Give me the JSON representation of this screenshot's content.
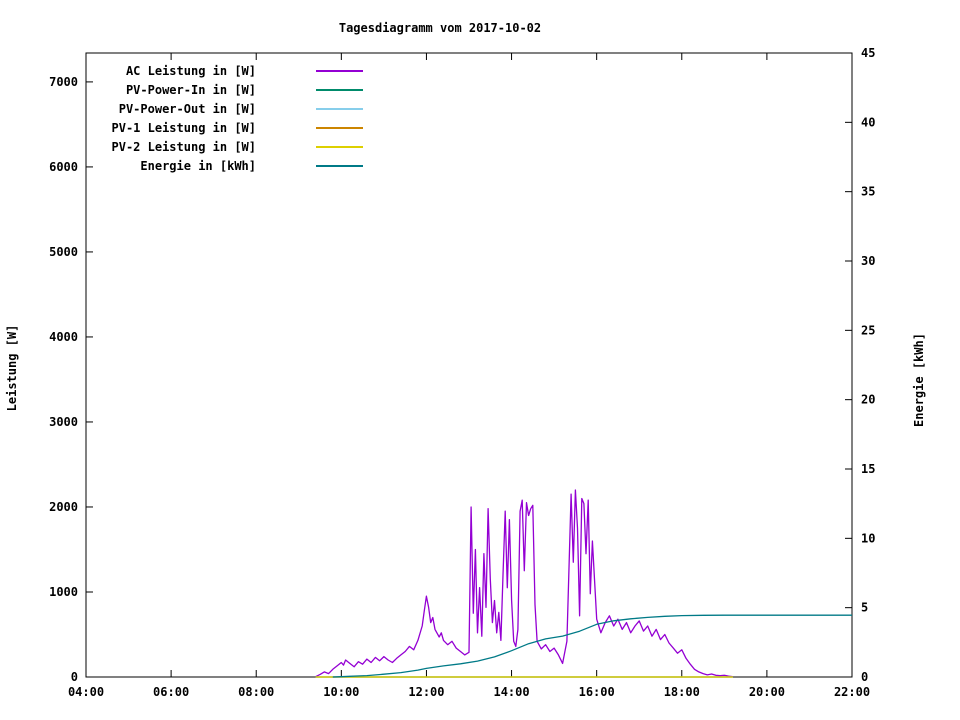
{
  "chart_data": {
    "type": "line",
    "title": "Tagesdiagramm vom 2017-10-02",
    "ylabel_left": "Leistung [W]",
    "ylabel_right": "Energie [kWh]",
    "grid": false,
    "legend_position": "top-left",
    "x_axis": {
      "start_hour": 4,
      "end_hour": 22,
      "tick_step": 2,
      "tick_labels": [
        "04:00",
        "06:00",
        "08:00",
        "10:00",
        "12:00",
        "14:00",
        "16:00",
        "18:00",
        "20:00",
        "22:00"
      ]
    },
    "y_left": {
      "min": 0,
      "max": 7340,
      "ticks": [
        0,
        1000,
        2000,
        3000,
        4000,
        5000,
        6000,
        7000
      ]
    },
    "y_right": {
      "min": 0,
      "max": 45,
      "ticks": [
        0,
        5,
        10,
        15,
        20,
        25,
        30,
        35,
        40,
        45
      ]
    },
    "series": [
      {
        "key": "ac-leistung",
        "name": "AC Leistung in [W]",
        "color": "#9400d3",
        "axis": "left",
        "points": [
          [
            9.4,
            5
          ],
          [
            9.5,
            30
          ],
          [
            9.6,
            60
          ],
          [
            9.7,
            40
          ],
          [
            9.8,
            90
          ],
          [
            9.9,
            130
          ],
          [
            10.0,
            170
          ],
          [
            10.05,
            140
          ],
          [
            10.1,
            200
          ],
          [
            10.2,
            160
          ],
          [
            10.3,
            120
          ],
          [
            10.4,
            180
          ],
          [
            10.5,
            150
          ],
          [
            10.6,
            210
          ],
          [
            10.7,
            170
          ],
          [
            10.8,
            230
          ],
          [
            10.9,
            190
          ],
          [
            11.0,
            240
          ],
          [
            11.1,
            200
          ],
          [
            11.2,
            170
          ],
          [
            11.3,
            220
          ],
          [
            11.4,
            260
          ],
          [
            11.5,
            300
          ],
          [
            11.6,
            360
          ],
          [
            11.7,
            320
          ],
          [
            11.8,
            430
          ],
          [
            11.9,
            600
          ],
          [
            11.95,
            780
          ],
          [
            12.0,
            950
          ],
          [
            12.05,
            820
          ],
          [
            12.1,
            640
          ],
          [
            12.15,
            700
          ],
          [
            12.2,
            560
          ],
          [
            12.3,
            470
          ],
          [
            12.35,
            520
          ],
          [
            12.4,
            430
          ],
          [
            12.5,
            380
          ],
          [
            12.6,
            420
          ],
          [
            12.7,
            340
          ],
          [
            12.8,
            300
          ],
          [
            12.9,
            260
          ],
          [
            13.0,
            290
          ],
          [
            13.05,
            2000
          ],
          [
            13.1,
            750
          ],
          [
            13.15,
            1500
          ],
          [
            13.2,
            520
          ],
          [
            13.25,
            1050
          ],
          [
            13.3,
            480
          ],
          [
            13.35,
            1450
          ],
          [
            13.4,
            820
          ],
          [
            13.45,
            1980
          ],
          [
            13.5,
            1150
          ],
          [
            13.55,
            640
          ],
          [
            13.6,
            900
          ],
          [
            13.65,
            520
          ],
          [
            13.7,
            760
          ],
          [
            13.75,
            430
          ],
          [
            13.8,
            1200
          ],
          [
            13.85,
            1950
          ],
          [
            13.9,
            1050
          ],
          [
            13.95,
            1850
          ],
          [
            14.0,
            900
          ],
          [
            14.05,
            420
          ],
          [
            14.1,
            360
          ],
          [
            14.15,
            560
          ],
          [
            14.2,
            1950
          ],
          [
            14.25,
            2080
          ],
          [
            14.3,
            1250
          ],
          [
            14.35,
            2050
          ],
          [
            14.4,
            1900
          ],
          [
            14.45,
            1980
          ],
          [
            14.5,
            2020
          ],
          [
            14.55,
            850
          ],
          [
            14.6,
            420
          ],
          [
            14.7,
            330
          ],
          [
            14.8,
            380
          ],
          [
            14.9,
            300
          ],
          [
            15.0,
            340
          ],
          [
            15.1,
            260
          ],
          [
            15.2,
            160
          ],
          [
            15.3,
            420
          ],
          [
            15.4,
            2150
          ],
          [
            15.45,
            1350
          ],
          [
            15.5,
            2200
          ],
          [
            15.55,
            1750
          ],
          [
            15.6,
            720
          ],
          [
            15.65,
            2100
          ],
          [
            15.7,
            2040
          ],
          [
            15.75,
            1450
          ],
          [
            15.8,
            2080
          ],
          [
            15.85,
            980
          ],
          [
            15.9,
            1600
          ],
          [
            15.95,
            1150
          ],
          [
            16.0,
            680
          ],
          [
            16.1,
            520
          ],
          [
            16.2,
            640
          ],
          [
            16.3,
            720
          ],
          [
            16.4,
            600
          ],
          [
            16.5,
            680
          ],
          [
            16.6,
            560
          ],
          [
            16.7,
            640
          ],
          [
            16.8,
            520
          ],
          [
            16.9,
            600
          ],
          [
            17.0,
            660
          ],
          [
            17.1,
            540
          ],
          [
            17.2,
            600
          ],
          [
            17.3,
            480
          ],
          [
            17.4,
            560
          ],
          [
            17.5,
            440
          ],
          [
            17.6,
            500
          ],
          [
            17.7,
            400
          ],
          [
            17.8,
            340
          ],
          [
            17.9,
            280
          ],
          [
            18.0,
            320
          ],
          [
            18.1,
            220
          ],
          [
            18.2,
            150
          ],
          [
            18.3,
            90
          ],
          [
            18.4,
            60
          ],
          [
            18.5,
            40
          ],
          [
            18.6,
            25
          ],
          [
            18.7,
            35
          ],
          [
            18.8,
            20
          ],
          [
            18.9,
            15
          ],
          [
            19.0,
            20
          ],
          [
            19.1,
            10
          ],
          [
            19.2,
            5
          ]
        ]
      },
      {
        "key": "pv-power-in",
        "name": "PV-Power-In in [W]",
        "color": "#008b6b",
        "axis": "left",
        "points": [
          [
            9.4,
            0
          ],
          [
            19.2,
            0
          ]
        ]
      },
      {
        "key": "pv-power-out",
        "name": "PV-Power-Out in [W]",
        "color": "#87ceeb",
        "axis": "left",
        "points": [
          [
            9.4,
            0
          ],
          [
            19.2,
            0
          ]
        ]
      },
      {
        "key": "pv-1-leistung",
        "name": "PV-1 Leistung in [W]",
        "color": "#cc8500",
        "axis": "left",
        "points": [
          [
            9.4,
            0
          ],
          [
            19.2,
            0
          ]
        ]
      },
      {
        "key": "pv-2-leistung",
        "name": "PV-2 Leistung in [W]",
        "color": "#ddd000",
        "axis": "left",
        "points": [
          [
            9.4,
            0
          ],
          [
            19.2,
            0
          ]
        ]
      },
      {
        "key": "energie",
        "name": "Energie in [kWh]",
        "color": "#007a87",
        "axis": "right",
        "points": [
          [
            9.8,
            0
          ],
          [
            10.2,
            0.05
          ],
          [
            10.6,
            0.1
          ],
          [
            11.0,
            0.2
          ],
          [
            11.4,
            0.32
          ],
          [
            11.8,
            0.5
          ],
          [
            12.0,
            0.62
          ],
          [
            12.4,
            0.8
          ],
          [
            12.8,
            0.95
          ],
          [
            13.2,
            1.15
          ],
          [
            13.6,
            1.45
          ],
          [
            14.0,
            1.9
          ],
          [
            14.4,
            2.4
          ],
          [
            14.8,
            2.75
          ],
          [
            15.2,
            2.95
          ],
          [
            15.6,
            3.3
          ],
          [
            16.0,
            3.8
          ],
          [
            16.4,
            4.05
          ],
          [
            16.8,
            4.2
          ],
          [
            17.2,
            4.3
          ],
          [
            17.6,
            4.38
          ],
          [
            18.0,
            4.43
          ],
          [
            18.5,
            4.45
          ],
          [
            19.0,
            4.46
          ],
          [
            20.0,
            4.46
          ],
          [
            21.0,
            4.46
          ],
          [
            22.0,
            4.46
          ]
        ]
      }
    ]
  }
}
